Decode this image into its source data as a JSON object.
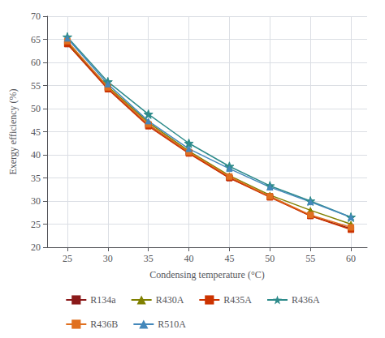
{
  "chart_data": {
    "type": "line",
    "x": [
      25,
      30,
      35,
      40,
      45,
      50,
      55,
      60
    ],
    "series": [
      {
        "name": "R134a",
        "color": "#8b1a1a",
        "marker": "square",
        "values": [
          64.0,
          54.5,
          46.5,
          40.5,
          35.0,
          31.0,
          26.8,
          24.0
        ]
      },
      {
        "name": "R430A",
        "color": "#808000",
        "marker": "triangle",
        "values": [
          64.3,
          54.8,
          47.0,
          40.8,
          35.5,
          31.3,
          28.0,
          25.0
        ]
      },
      {
        "name": "R435A",
        "color": "#cc3300",
        "marker": "square",
        "values": [
          64.0,
          54.2,
          46.2,
          40.3,
          35.0,
          30.8,
          26.8,
          23.8
        ]
      },
      {
        "name": "R436A",
        "color": "#2e8b8b",
        "marker": "star",
        "values": [
          65.5,
          55.8,
          48.8,
          42.5,
          37.5,
          33.3,
          30.0,
          26.5
        ]
      },
      {
        "name": "R436B",
        "color": "#e07020",
        "marker": "square",
        "values": [
          64.6,
          54.6,
          46.6,
          40.6,
          35.3,
          31.0,
          27.0,
          24.3
        ]
      },
      {
        "name": "R510A",
        "color": "#4488bb",
        "marker": "triangle",
        "values": [
          65.2,
          55.3,
          47.3,
          41.3,
          37.0,
          33.0,
          29.8,
          26.5
        ]
      }
    ],
    "xlabel": "Condensing temperature (°C)",
    "ylabel": "Exergy efficiency (%)",
    "xlim": [
      22.5,
      62
    ],
    "ylim": [
      20,
      70
    ],
    "xticks": [
      25,
      30,
      35,
      40,
      45,
      50,
      55,
      60
    ],
    "yticks": [
      20,
      25,
      30,
      35,
      40,
      45,
      50,
      55,
      60,
      65,
      70
    ],
    "grid": true,
    "legend": "bottom"
  }
}
